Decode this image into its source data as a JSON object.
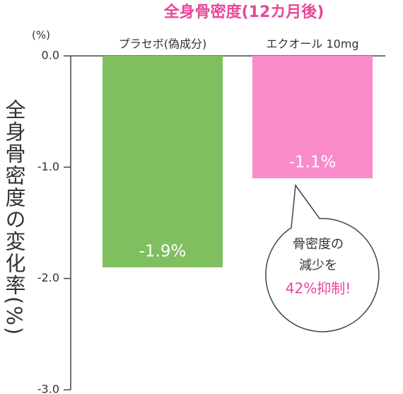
{
  "chart_data": {
    "type": "bar",
    "title": "全身骨密度(12カ月後)",
    "y_label": "全身骨密度の変化率(%)",
    "y_unit": "(%)",
    "categories": [
      "プラセボ(偽成分)",
      "エクオール 10mg"
    ],
    "values": [
      -1.9,
      -1.1
    ],
    "value_labels": [
      "-1.9%",
      "-1.1%"
    ],
    "colors": [
      "#80bf5f",
      "#f98bcb"
    ],
    "ylim": [
      -3,
      0
    ],
    "yticks": [
      {
        "value": 0,
        "label": "0.0"
      },
      {
        "value": -1,
        "label": "-1.0"
      },
      {
        "value": -2,
        "label": "-2.0"
      },
      {
        "value": -3,
        "label": "-3.0"
      }
    ],
    "annotation": {
      "lines": [
        "骨密度の",
        "減少を"
      ],
      "highlight": "42%抑制!"
    }
  }
}
